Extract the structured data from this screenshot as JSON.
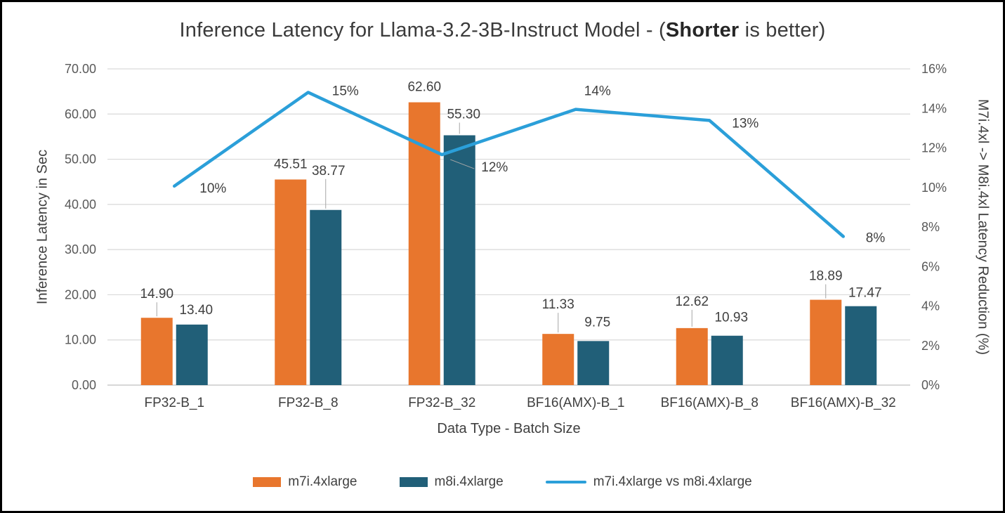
{
  "title": {
    "prefix": "Inference Latency for Llama-3.2-3B-Instruct Model - (",
    "bold": "Shorter",
    "suffix": " is better)"
  },
  "chart_data": {
    "type": "bar",
    "subtype": "grouped bars with secondary-axis line",
    "categories": [
      "FP32-B_1",
      "FP32-B_8",
      "FP32-B_32",
      "BF16(AMX)-B_1",
      "BF16(AMX)-B_8",
      "BF16(AMX)-B_32"
    ],
    "bar_series": [
      {
        "name": "m7i.4xlarge",
        "color": "#E8762D",
        "values": [
          14.9,
          45.51,
          62.6,
          11.33,
          12.62,
          18.89
        ],
        "labels": [
          "14.90",
          "45.51",
          "62.60",
          "11.33",
          "12.62",
          "18.89"
        ]
      },
      {
        "name": "m8i.4xlarge",
        "color": "#215F78",
        "values": [
          13.4,
          38.77,
          55.3,
          9.75,
          10.93,
          17.47
        ],
        "labels": [
          "13.40",
          "38.77",
          "55.30",
          "9.75",
          "10.93",
          "17.47"
        ]
      }
    ],
    "line_series": {
      "name": "m7i.4xlarge vs m8i.4xlarge",
      "color": "#2B9FD9",
      "axis": "right",
      "values": [
        10.07,
        14.81,
        11.66,
        13.95,
        13.39,
        7.52
      ],
      "labels": [
        "10%",
        "15%",
        "12%",
        "14%",
        "13%",
        "8%"
      ]
    },
    "left_axis": {
      "title": "Inference Latency in Sec",
      "min": 0,
      "max": 70,
      "step": 10,
      "tick_format": "2dp"
    },
    "right_axis": {
      "title": "M7i.4xl -> M8i.4xl Latency Reduction (%)",
      "min": 0,
      "max": 16,
      "step": 2,
      "tick_format": "percent"
    },
    "x_axis": {
      "title": "Data Type - Batch Size"
    },
    "legend_position": "bottom",
    "grid": true,
    "colors": {
      "gridline": "#d9d9d9",
      "baseline": "#bfbfbf",
      "tick_text": "#595959",
      "label_text": "#404040"
    }
  }
}
